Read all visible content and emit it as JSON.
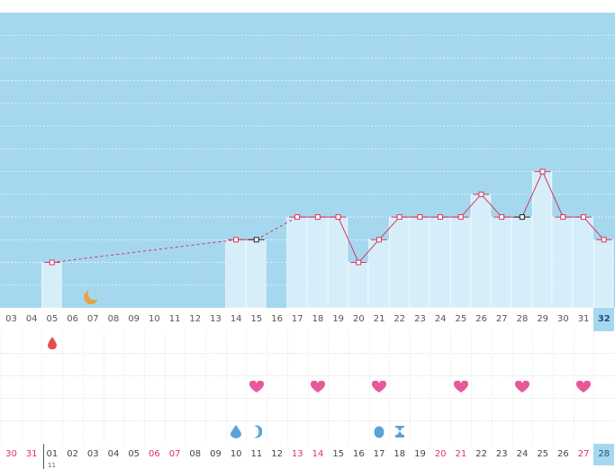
{
  "cycle_days": [
    "03",
    "04",
    "05",
    "06",
    "07",
    "08",
    "09",
    "10",
    "11",
    "12",
    "13",
    "14",
    "15",
    "16",
    "17",
    "18",
    "19",
    "20",
    "21",
    "22",
    "23",
    "24",
    "25",
    "26",
    "27",
    "28",
    "29",
    "30",
    "31",
    "32"
  ],
  "selected_cycle_day": "32",
  "dates": [
    {
      "label": "30",
      "red": true
    },
    {
      "label": "31",
      "red": true
    },
    {
      "label": "01",
      "red": false
    },
    {
      "label": "02",
      "red": false
    },
    {
      "label": "03",
      "red": false
    },
    {
      "label": "04",
      "red": false
    },
    {
      "label": "05",
      "red": false
    },
    {
      "label": "06",
      "red": true
    },
    {
      "label": "07",
      "red": true
    },
    {
      "label": "08",
      "red": false
    },
    {
      "label": "09",
      "red": false
    },
    {
      "label": "10",
      "red": false
    },
    {
      "label": "11",
      "red": false
    },
    {
      "label": "12",
      "red": false
    },
    {
      "label": "13",
      "red": true
    },
    {
      "label": "14",
      "red": true
    },
    {
      "label": "15",
      "red": false
    },
    {
      "label": "16",
      "red": false
    },
    {
      "label": "17",
      "red": false
    },
    {
      "label": "18",
      "red": false
    },
    {
      "label": "19",
      "red": false
    },
    {
      "label": "20",
      "red": true
    },
    {
      "label": "21",
      "red": true
    },
    {
      "label": "22",
      "red": false
    },
    {
      "label": "23",
      "red": false
    },
    {
      "label": "24",
      "red": false
    },
    {
      "label": "25",
      "red": false
    },
    {
      "label": "26",
      "red": false
    },
    {
      "label": "27",
      "red": true
    },
    {
      "label": "28",
      "red": false
    }
  ],
  "selected_date": "28",
  "month_label": "11",
  "colors": {
    "chart_bg": "#a5d8ef",
    "bar_fill": "#d6eef9",
    "line": "#d2395f",
    "heart": "#e8589a",
    "moon": "#e8a33c",
    "drop_red": "#e05050",
    "drop_blue": "#5aa3d8",
    "date_red": "#e0335a"
  },
  "chart_data": {
    "type": "line",
    "x": [
      "05",
      "14",
      "15",
      "17",
      "18",
      "19",
      "20",
      "21",
      "22",
      "23",
      "24",
      "25",
      "26",
      "27",
      "28",
      "29",
      "30",
      "31",
      "32"
    ],
    "values": [
      2,
      3,
      3,
      4,
      4,
      4,
      2,
      3,
      4,
      4,
      4,
      4,
      5,
      4,
      4,
      6,
      4,
      4,
      3
    ],
    "dashed_segments": [
      [
        "05",
        "14"
      ],
      [
        "15",
        "17"
      ]
    ],
    "open_markers": [
      "15",
      "28"
    ],
    "ylim": [
      0,
      13
    ],
    "grid": true
  },
  "markers": {
    "moon": [
      "07"
    ],
    "red_drop": [
      "05"
    ],
    "hearts": [
      "15",
      "18",
      "21",
      "25",
      "28",
      "31"
    ],
    "blue_drop": [
      "14"
    ],
    "blue_crescent": [
      "15"
    ],
    "blue_egg": [
      "21"
    ],
    "blue_hourglass": [
      "22"
    ]
  }
}
